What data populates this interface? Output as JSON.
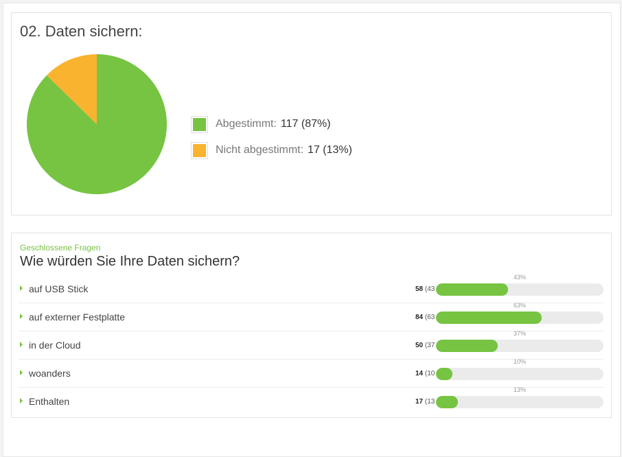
{
  "colors": {
    "green": "#76c442",
    "orange": "#f9b32f",
    "accent": "#7ac143"
  },
  "section1": {
    "title": "02. Daten sichern:",
    "legend": [
      {
        "label": "Abgestimmt:",
        "value": "117 (87%)",
        "color": "#76c442"
      },
      {
        "label": "Nicht abgestimmt:",
        "value": "17 (13%)",
        "color": "#f9b32f"
      }
    ]
  },
  "chart_data": {
    "type": "pie",
    "categories": [
      "Abgestimmt",
      "Nicht abgestimmt"
    ],
    "values": [
      117,
      17
    ],
    "title": "02. Daten sichern:"
  },
  "section2": {
    "subtitle": "Geschlossene Fragen",
    "question": "Wie würden Sie Ihre Daten sichern?",
    "rows": [
      {
        "label": "auf USB Stick",
        "count": "58",
        "paren": "(43",
        "pct": "43%",
        "fraction": 0.43
      },
      {
        "label": "auf externer Festplatte",
        "count": "84",
        "paren": "(63",
        "pct": "63%",
        "fraction": 0.63
      },
      {
        "label": "in der Cloud",
        "count": "50",
        "paren": "(37",
        "pct": "37%",
        "fraction": 0.37
      },
      {
        "label": "woanders",
        "count": "14",
        "paren": "(10",
        "pct": "10%",
        "fraction": 0.1
      },
      {
        "label": "Enthalten",
        "count": "17",
        "paren": "(13",
        "pct": "13%",
        "fraction": 0.13
      }
    ]
  }
}
